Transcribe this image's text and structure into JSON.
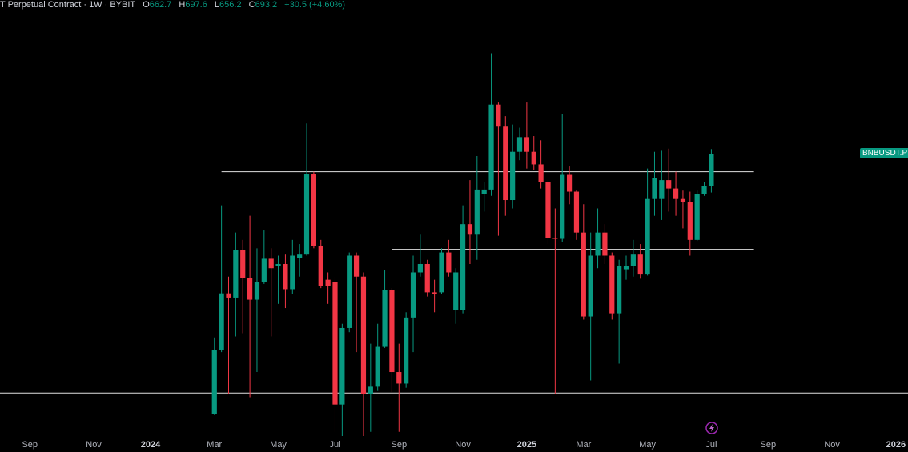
{
  "chart_data": {
    "type": "candlestick",
    "title": "T Perpetual Contract · 1W · BYBIT",
    "ohlc_letters": [
      "O",
      "H",
      "L",
      "C"
    ],
    "change": "+30.5 (+4.60%)",
    "symbol_tag": "BNBUSDT.P",
    "up_color": "#089981",
    "down_color": "#f23645",
    "open": [
      445,
      506,
      560,
      556,
      601,
      575,
      554,
      571,
      593,
      586,
      588,
      564,
      594,
      597,
      674,
      605,
      573,
      571,
      454,
      527,
      596,
      576,
      464,
      471,
      509,
      563,
      485,
      474,
      537,
      580,
      588,
      561,
      561,
      599,
      544,
      544,
      626,
      616,
      655,
      659,
      740,
      719,
      649,
      695,
      709,
      695,
      683,
      666,
      613,
      612,
      673,
      657,
      618,
      538,
      596,
      618,
      596,
      541,
      583,
      586,
      597,
      578,
      650,
      650,
      668,
      660,
      650,
      647,
      611,
      655,
      662.7
    ],
    "high": [
      518,
      644,
      576,
      618,
      611,
      634,
      603,
      620,
      603,
      596,
      597,
      611,
      607,
      722,
      676,
      611,
      580,
      576,
      531,
      599,
      599,
      580,
      512,
      531,
      582,
      565,
      512,
      542,
      596,
      616,
      592,
      573,
      603,
      611,
      584,
      644,
      668,
      691,
      666,
      789,
      742,
      729,
      721,
      718,
      742,
      710,
      706,
      668,
      641,
      731,
      681,
      658,
      645,
      618,
      641,
      626,
      599,
      592,
      596,
      611,
      607,
      679,
      695,
      696,
      698,
      676,
      658,
      657,
      658,
      666,
      697.6
    ],
    "low": [
      444,
      504,
      464,
      519,
      522,
      461,
      485,
      569,
      519,
      550,
      546,
      559,
      576,
      596,
      603,
      565,
      550,
      428,
      424,
      523,
      504,
      424,
      428,
      467,
      508,
      466,
      428,
      470,
      504,
      576,
      557,
      542,
      559,
      576,
      531,
      541,
      588,
      592,
      638,
      653,
      615,
      634,
      641,
      687,
      679,
      678,
      660,
      607,
      464,
      609,
      645,
      611,
      535,
      477,
      584,
      588,
      535,
      493,
      573,
      576,
      574,
      577,
      634,
      630,
      638,
      634,
      622,
      596,
      610,
      653,
      656.2
    ],
    "close": [
      506,
      560,
      556,
      601,
      575,
      554,
      571,
      593,
      584,
      588,
      564,
      596,
      597,
      674,
      605,
      567,
      567,
      454,
      527,
      596,
      576,
      464,
      471,
      509,
      563,
      485,
      474,
      537,
      580,
      588,
      561,
      559,
      599,
      580,
      580,
      626,
      616,
      659,
      659,
      740,
      719,
      649,
      695,
      709,
      695,
      683,
      666,
      613,
      612,
      673,
      657,
      618,
      538,
      596,
      618,
      596,
      541,
      586,
      586,
      597,
      578,
      650,
      670,
      668,
      660,
      650,
      647,
      611,
      655,
      662,
      693.2
    ],
    "ylim": [
      424,
      839.7
    ],
    "xlim": [
      -30.2,
      97.7
    ],
    "xticks": [
      {
        "value": -26,
        "label": "Sep"
      },
      {
        "value": -17,
        "label": "Nov"
      },
      {
        "value": -9,
        "label": "2024"
      },
      {
        "value": 0,
        "label": "Mar"
      },
      {
        "value": 9,
        "label": "May"
      },
      {
        "value": 17,
        "label": "Jul"
      },
      {
        "value": 26,
        "label": "Sep"
      },
      {
        "value": 35,
        "label": "Nov"
      },
      {
        "value": 44,
        "label": "2025"
      },
      {
        "value": 52,
        "label": "Mar"
      },
      {
        "value": 61,
        "label": "May"
      },
      {
        "value": 70,
        "label": "Jul"
      },
      {
        "value": 78,
        "label": "Sep"
      },
      {
        "value": 87,
        "label": "Nov"
      },
      {
        "value": 96,
        "label": "2026"
      }
    ],
    "hlines": [
      {
        "value": 676,
        "from": 1,
        "to": 76
      },
      {
        "value": 602,
        "from": 25,
        "to": 76
      },
      {
        "value": 465,
        "from": -30.2,
        "to": 97.7
      }
    ]
  }
}
